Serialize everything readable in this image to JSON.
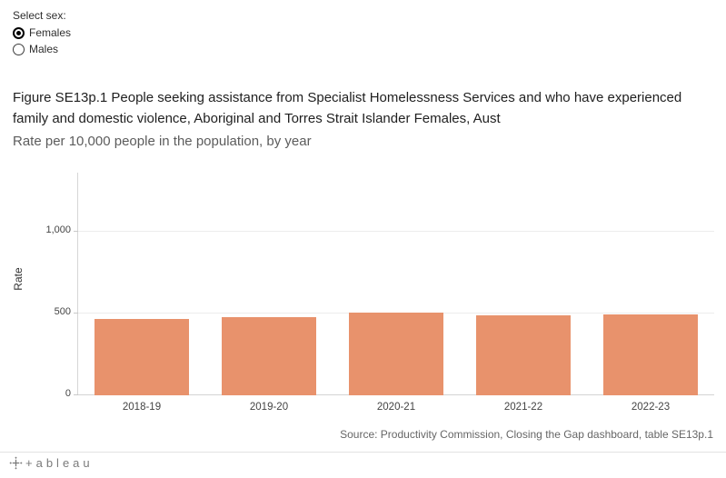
{
  "controls": {
    "label": "Select sex:",
    "options": [
      {
        "label": "Females",
        "selected": true
      },
      {
        "label": "Males",
        "selected": false
      }
    ]
  },
  "chart_data": {
    "type": "bar",
    "title": "Figure SE13p.1 People seeking assistance from Specialist Homelessness Services and who have experienced family and domestic violence, Aboriginal and Torres Strait Islander Females, Aust",
    "subtitle": "Rate per 10,000 people in the population, by year",
    "categories": [
      "2018-19",
      "2019-20",
      "2020-21",
      "2021-22",
      "2022-23"
    ],
    "values": [
      464,
      476,
      499,
      486,
      491
    ],
    "xlabel": "",
    "ylabel": "Rate",
    "ylim": [
      0,
      1350
    ],
    "yticks": [
      0,
      500,
      1000
    ],
    "ytick_labels": [
      "0",
      "500",
      "1,000"
    ],
    "bar_color": "#e8926c",
    "grid": "horizontal-light",
    "legend": "none"
  },
  "source": "Source: Productivity Commission, Closing the Gap dashboard, table SE13p.1",
  "footer": {
    "logo_text": "+ableau"
  }
}
